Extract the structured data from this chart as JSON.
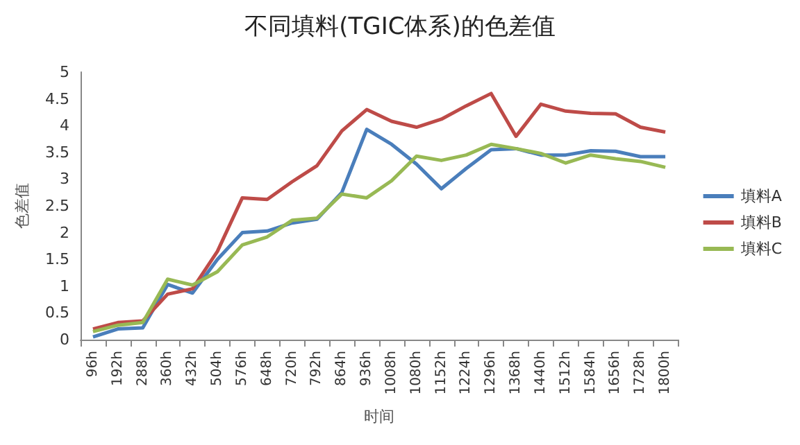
{
  "chart_data": {
    "type": "line",
    "title": "不同填料(TGIC体系)的色差值",
    "xlabel": "时间",
    "ylabel": "色差值",
    "categories": [
      "96h",
      "192h",
      "288h",
      "360h",
      "432h",
      "504h",
      "576h",
      "648h",
      "720h",
      "792h",
      "864h",
      "936h",
      "1008h",
      "1080h",
      "1152h",
      "1224h",
      "1296h",
      "1368h",
      "1440h",
      "1512h",
      "1584h",
      "1656h",
      "1728h",
      "1800h"
    ],
    "series": [
      {
        "name": "填料A",
        "color": "#4a7ebb",
        "values": [
          0.05,
          0.2,
          0.22,
          1.03,
          0.87,
          1.5,
          2.0,
          2.03,
          2.18,
          2.25,
          2.75,
          3.93,
          3.65,
          3.28,
          2.82,
          3.2,
          3.55,
          3.57,
          3.45,
          3.45,
          3.53,
          3.52,
          3.42,
          3.42
        ]
      },
      {
        "name": "填料B",
        "color": "#be4b48",
        "values": [
          0.2,
          0.32,
          0.35,
          0.85,
          0.95,
          1.65,
          2.65,
          2.62,
          2.95,
          3.25,
          3.9,
          4.3,
          4.08,
          3.97,
          4.12,
          4.37,
          4.6,
          3.8,
          4.4,
          4.27,
          4.23,
          4.22,
          3.97,
          3.88
        ]
      },
      {
        "name": "填料C",
        "color": "#98b954",
        "values": [
          0.15,
          0.27,
          0.32,
          1.13,
          1.02,
          1.27,
          1.77,
          1.92,
          2.23,
          2.27,
          2.72,
          2.65,
          2.97,
          3.43,
          3.35,
          3.45,
          3.65,
          3.57,
          3.48,
          3.3,
          3.45,
          3.38,
          3.33,
          3.22
        ]
      }
    ],
    "ylim": [
      0,
      5
    ],
    "yticks": [
      0,
      0.5,
      1,
      1.5,
      2,
      2.5,
      3,
      3.5,
      4,
      4.5,
      5
    ],
    "grid": false,
    "legend": "right",
    "marker": "none",
    "line_style": "solid"
  }
}
